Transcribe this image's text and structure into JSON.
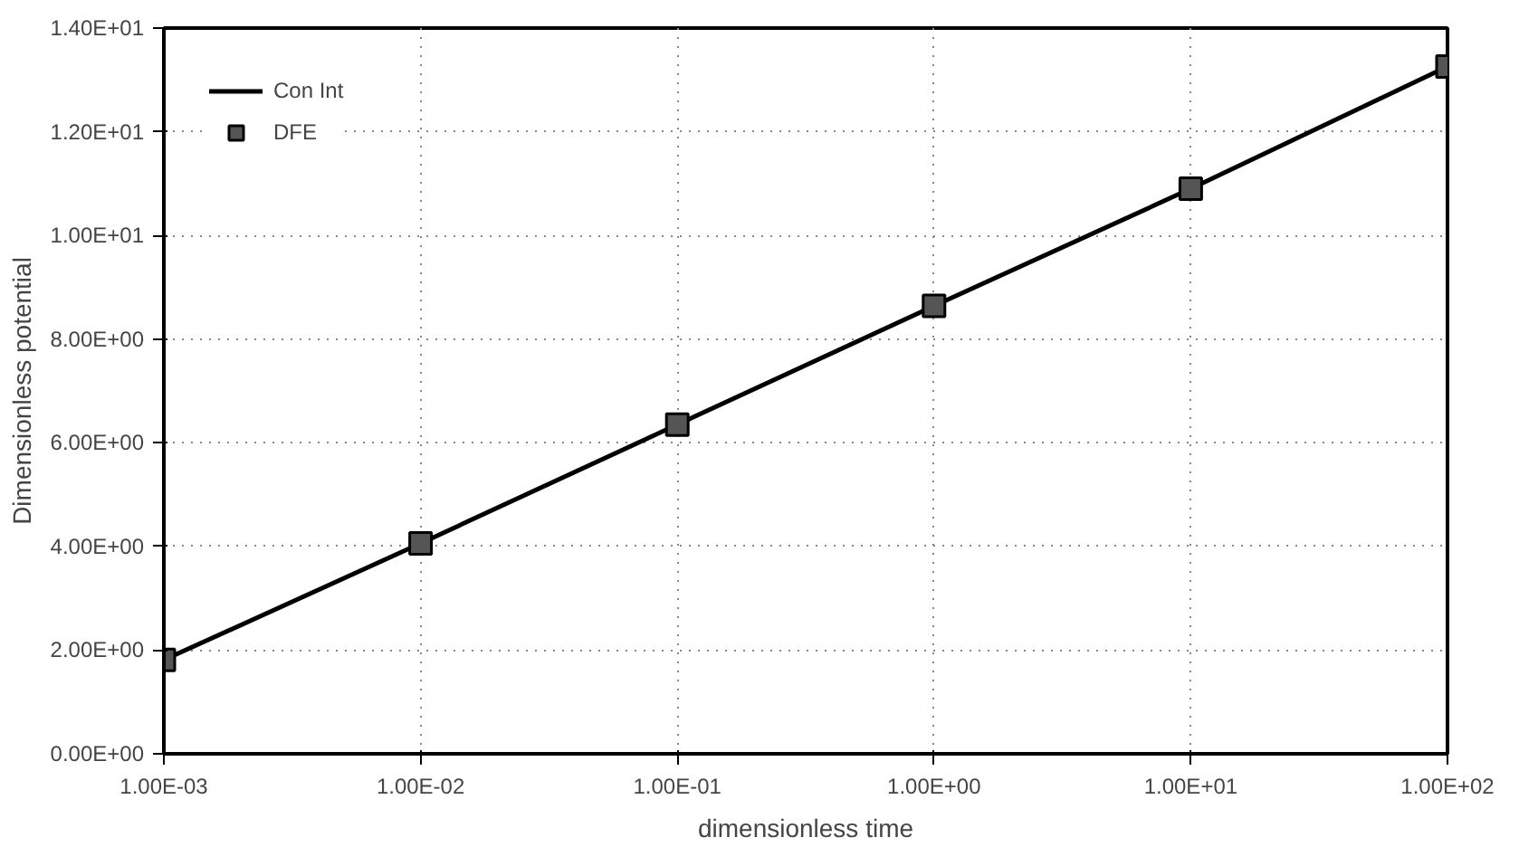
{
  "chart_data": {
    "type": "line",
    "xlabel": "dimensionless time",
    "ylabel": "Dimensionless potential",
    "log": "x",
    "x": [
      0.001,
      0.01,
      0.1,
      1,
      10,
      100
    ],
    "series": [
      {
        "name": "Con Int",
        "color": "#000000",
        "values": [
          1.81,
          4.06,
          6.35,
          8.64,
          10.9,
          13.26
        ],
        "marker": "none",
        "line_style": "solid"
      },
      {
        "name": "DFE",
        "type": "scatter",
        "color": "#555555",
        "values": [
          1.81,
          4.06,
          6.35,
          8.64,
          10.9,
          13.26
        ],
        "marker": "square"
      }
    ],
    "xlim": [
      0.001,
      100
    ],
    "ylim": [
      0,
      14
    ],
    "xticks": [
      {
        "value": 0.001,
        "label": "1.00E-03"
      },
      {
        "value": 0.01,
        "label": "1.00E-02"
      },
      {
        "value": 0.1,
        "label": "1.00E-01"
      },
      {
        "value": 1,
        "label": "1.00E+00"
      },
      {
        "value": 10,
        "label": "1.00E+01"
      },
      {
        "value": 100,
        "label": "1.00E+02"
      }
    ],
    "yticks": [
      {
        "value": 0,
        "label": "0.00E+00"
      },
      {
        "value": 2,
        "label": "2.00E+00"
      },
      {
        "value": 4,
        "label": "4.00E+00"
      },
      {
        "value": 6,
        "label": "6.00E+00"
      },
      {
        "value": 8,
        "label": "8.00E+00"
      },
      {
        "value": 10,
        "label": "1.00E+01"
      },
      {
        "value": 12,
        "label": "1.20E+01"
      },
      {
        "value": 14,
        "label": "1.40E+01"
      }
    ],
    "grid": true,
    "legend": "top left"
  }
}
